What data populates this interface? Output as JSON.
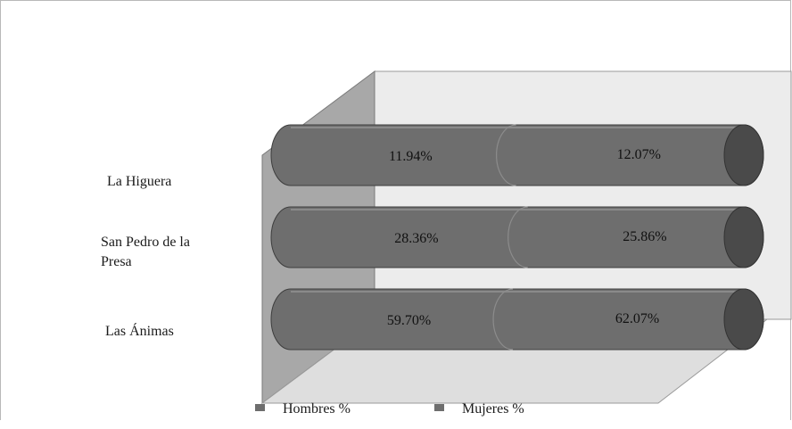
{
  "chart_data": {
    "type": "bar",
    "orientation": "horizontal",
    "stacked": true,
    "style": "3d-cylinder",
    "categories": [
      "La Higuera",
      "San Pedro de la Presa",
      "Las Ánimas"
    ],
    "series": [
      {
        "name": "Hombres %",
        "values": [
          11.94,
          28.36,
          59.7
        ],
        "labels": [
          "11.94%",
          "28.36%",
          "59.70%"
        ]
      },
      {
        "name": "Mujeres %",
        "values": [
          12.07,
          25.86,
          62.07
        ],
        "labels": [
          "12.07%",
          "25.86%",
          "62.07%"
        ]
      }
    ],
    "title": "",
    "xlabel": "",
    "ylabel": "",
    "legend_position": "bottom",
    "colors": {
      "bar": "#6e6e6e",
      "bar_dark": "#4a4a4a",
      "back_wall": "#ececec",
      "side_wall": "#9a9a9a",
      "floor": "#dcdcdc"
    }
  },
  "categories_display": {
    "la_higuera": "La Higuera",
    "san_pedro_line1": "San Pedro de la",
    "san_pedro_line2": "Presa",
    "las_animas": "Las Ánimas"
  },
  "legend": {
    "hombres": "Hombres %",
    "mujeres": "Mujeres %"
  }
}
